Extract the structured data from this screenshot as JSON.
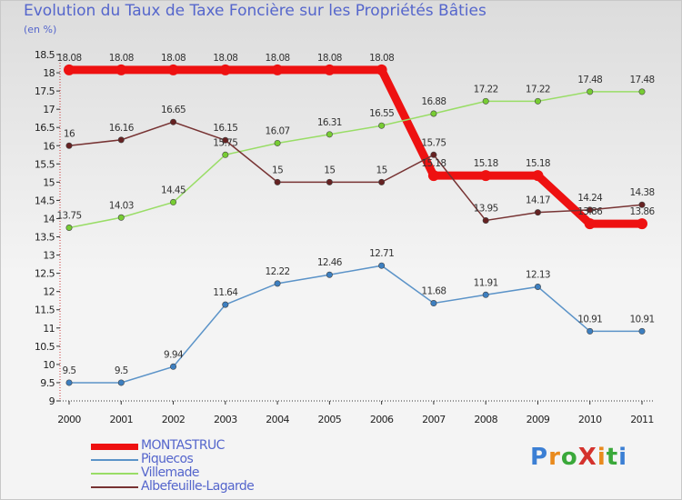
{
  "title": "Evolution du Taux de Taxe Foncière sur les Propriétés Bâties",
  "unit_label": "(en %)",
  "logo": {
    "text": "ProXiti",
    "letters": [
      "P",
      "r",
      "o",
      "X",
      "i",
      "t",
      "i"
    ],
    "colors": [
      "#3b7fd4",
      "#e98a1d",
      "#3aa83a",
      "#d4322d",
      "#e98a1d",
      "#3aa83a",
      "#3b7fd4"
    ]
  },
  "chart_data": {
    "type": "line",
    "title": "Evolution du Taux de Taxe Foncière sur les Propriétés Bâties",
    "ylabel": "(en %)",
    "xlabel": "",
    "categories": [
      "2000",
      "2001",
      "2002",
      "2003",
      "2004",
      "2005",
      "2006",
      "2007",
      "2008",
      "2009",
      "2010",
      "2011"
    ],
    "ylim": [
      9,
      18.5
    ],
    "yticks": [
      "9",
      "9.5",
      "10",
      "10.5",
      "11",
      "11.5",
      "12",
      "12.5",
      "13",
      "13.5",
      "14",
      "14.5",
      "15",
      "15.5",
      "16",
      "16.5",
      "17",
      "17.5",
      "18",
      "18.5"
    ],
    "grid": false,
    "legend_position": "bottom-left",
    "series": [
      {
        "name": "MONTASTRUC",
        "color": "#ee1111",
        "marker": "#ee1111",
        "thick": true,
        "values": [
          18.08,
          18.08,
          18.08,
          18.08,
          18.08,
          18.08,
          18.08,
          15.18,
          15.18,
          15.18,
          13.86,
          13.86
        ],
        "labels": [
          "18.08",
          "18.08",
          "18.08",
          "18.08",
          "18.08",
          "18.08",
          "18.08",
          "15.18",
          "15.18",
          "15.18",
          "13.86",
          "13.86"
        ]
      },
      {
        "name": "Piquecos",
        "color": "#5b93c8",
        "marker": "#3d7fc0",
        "thick": false,
        "values": [
          9.5,
          9.5,
          9.94,
          11.64,
          12.22,
          12.46,
          12.71,
          11.68,
          11.91,
          12.13,
          10.91,
          10.91
        ],
        "labels": [
          "9.5",
          "9.5",
          "9.94",
          "11.64",
          "12.22",
          "12.46",
          "12.71",
          "11.68",
          "11.91",
          "12.13",
          "10.91",
          "10.91"
        ]
      },
      {
        "name": "Villemade",
        "color": "#99dd66",
        "marker": "#77cc33",
        "thick": false,
        "values": [
          13.75,
          14.03,
          14.45,
          15.75,
          16.07,
          16.31,
          16.55,
          16.88,
          17.22,
          17.22,
          17.48,
          17.48
        ],
        "labels": [
          "13.75",
          "14.03",
          "14.45",
          "15.75",
          "16.07",
          "16.31",
          "16.55",
          "16.88",
          "17.22",
          "17.22",
          "17.48",
          "17.48"
        ]
      },
      {
        "name": "Albefeuille-Lagarde",
        "color": "#773333",
        "marker": "#662222",
        "thick": false,
        "values": [
          16,
          16.16,
          16.65,
          16.15,
          15,
          15,
          15,
          15.75,
          13.95,
          14.17,
          14.24,
          14.38
        ],
        "labels": [
          "16",
          "16.16",
          "16.65",
          "16.15",
          "15",
          "15",
          "15",
          "15.75",
          "13.95",
          "14.17",
          "14.24",
          "14.38"
        ]
      }
    ]
  }
}
